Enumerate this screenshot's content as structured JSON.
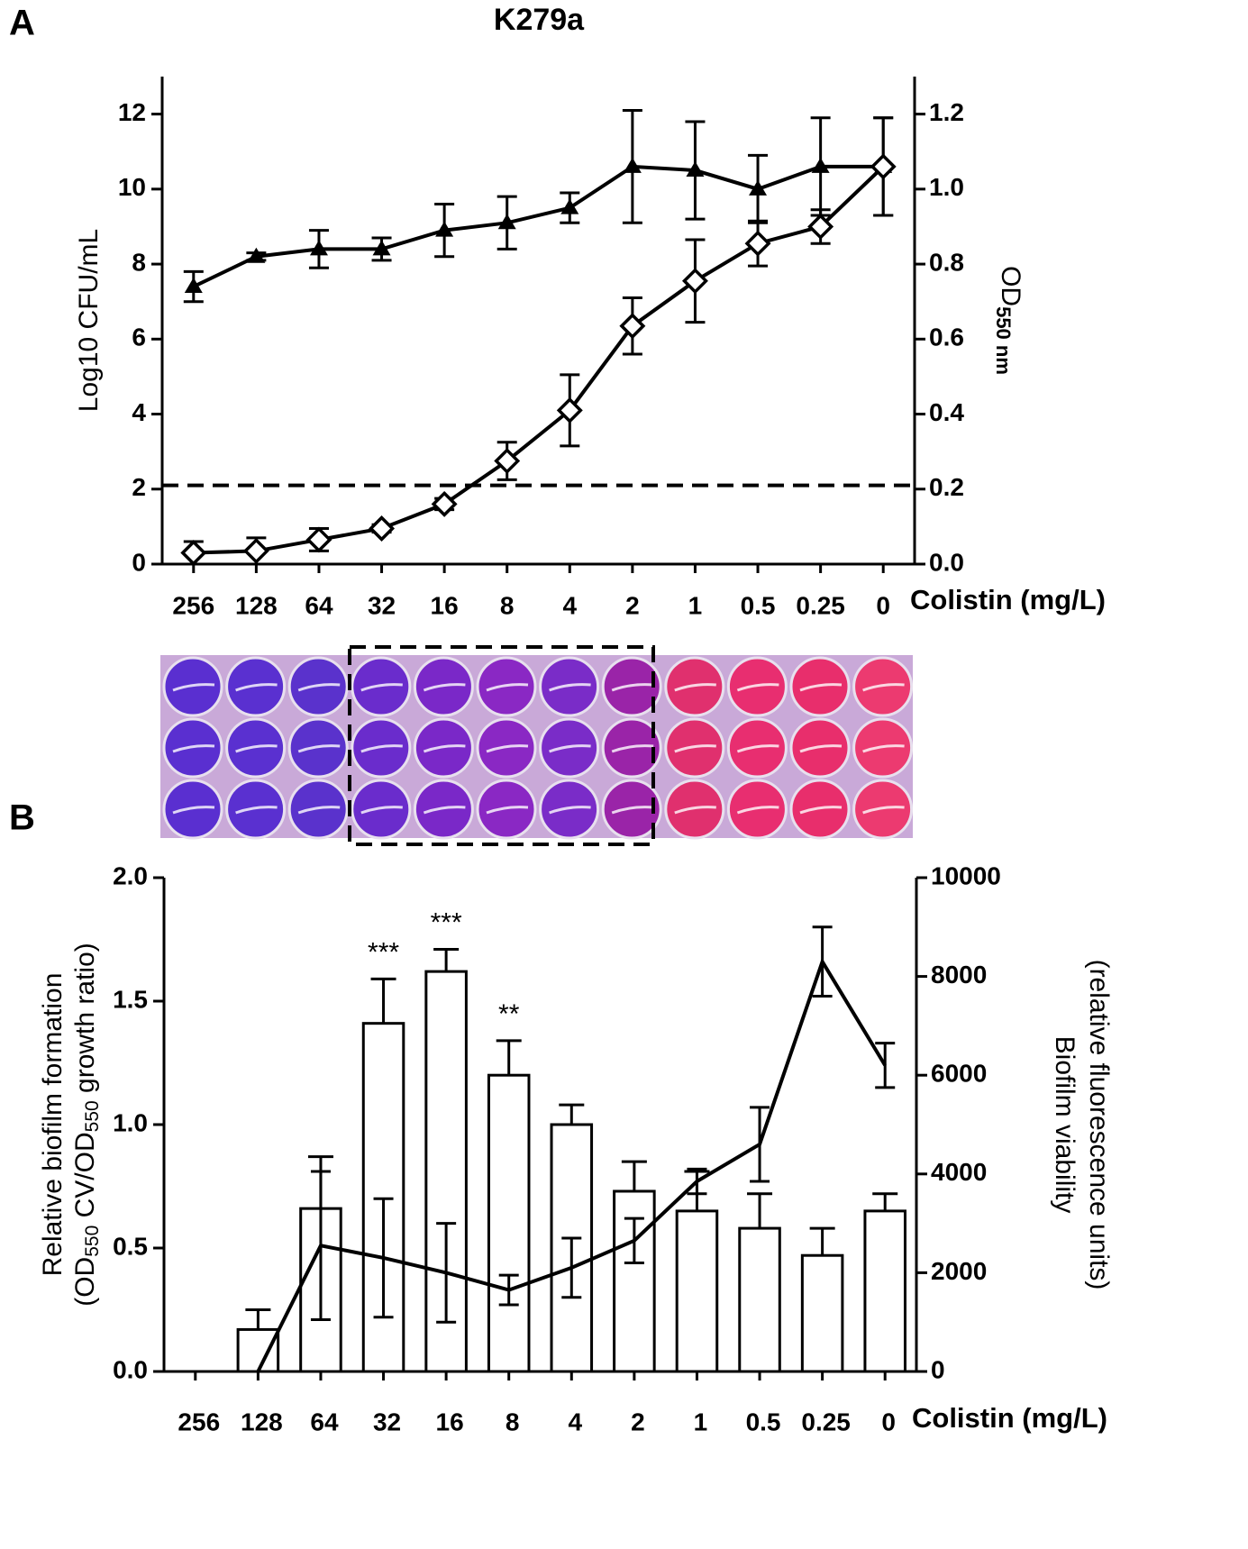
{
  "chart_data": [
    {
      "type": "line",
      "panel": "A",
      "title": "K279a",
      "categories": [
        "256",
        "128",
        "64",
        "32",
        "16",
        "8",
        "4",
        "2",
        "1",
        "0.5",
        "0.25",
        "0"
      ],
      "xlabel": "Colistin (mg/L)",
      "ylabel": "Log10 CFU/mL",
      "y2label": {
        "main": "OD",
        "sub": "550 nm"
      },
      "ylim": [
        0,
        13
      ],
      "yticks": [
        0,
        2,
        4,
        6,
        8,
        10,
        12
      ],
      "y2lim": [
        0,
        1.3
      ],
      "y2ticks": [
        {
          "value": 0,
          "label": "0.0"
        },
        0.2,
        0.4,
        0.6,
        0.8,
        {
          "value": 1,
          "label": "1.0"
        },
        1.2
      ],
      "reference_line": 2.1,
      "series": [
        {
          "marker": "triangle",
          "color": "#000000",
          "axis": "y2",
          "values": [
            0.74,
            0.82,
            0.84,
            0.84,
            0.89,
            0.91,
            0.95,
            1.06,
            1.05,
            1.0,
            1.06,
            1.06
          ],
          "errors": [
            0.04,
            0.01,
            0.05,
            0.03,
            0.07,
            0.07,
            0.04,
            0.15,
            0.13,
            0.09,
            0.13,
            0.13
          ]
        },
        {
          "marker": "diamond",
          "color": "#000000",
          "values": [
            0.3,
            0.35,
            0.65,
            0.95,
            1.6,
            2.75,
            4.1,
            6.35,
            7.55,
            8.55,
            9.0,
            10.6
          ],
          "errors": [
            0.3,
            0.35,
            0.3,
            0.1,
            0.15,
            0.5,
            0.95,
            0.75,
            1.1,
            0.6,
            0.45,
            1.3
          ]
        }
      ]
    },
    {
      "type": "bar",
      "panel": "B",
      "categories": [
        "256",
        "128",
        "64",
        "32",
        "16",
        "8",
        "4",
        "2",
        "1",
        "0.5",
        "0.25",
        "0"
      ],
      "xlabel": "Colistin (mg/L)",
      "ylabel": [
        "Relative biofilm formation",
        [
          "(OD",
          "550",
          " CV/OD",
          "550",
          " growth ratio)"
        ]
      ],
      "y2label": [
        "Biofilm viability",
        "(relative fluorescence units)"
      ],
      "ylim": [
        0,
        2
      ],
      "yticks": [
        {
          "value": 0,
          "label": "0.0"
        },
        0.5,
        {
          "value": 1,
          "label": "1.0"
        },
        1.5,
        {
          "value": 2,
          "label": "2.0"
        }
      ],
      "y2lim": [
        0,
        10000
      ],
      "y2ticks": [
        0,
        2000,
        4000,
        6000,
        8000,
        10000
      ],
      "annotations": [
        {
          "category": 3,
          "text": "***"
        },
        {
          "category": 4,
          "text": "***"
        },
        {
          "category": 5,
          "text": "**"
        }
      ],
      "series": [
        {
          "type": "bar",
          "color": "#ffffff",
          "values": [
            0,
            0.17,
            0.66,
            1.41,
            1.62,
            1.2,
            1.0,
            0.73,
            0.65,
            0.58,
            0.47,
            0.65
          ],
          "errors": [
            0,
            0.08,
            0.21,
            0.18,
            0.09,
            0.14,
            0.08,
            0.12,
            0.16,
            0.14,
            0.11,
            0.07
          ]
        },
        {
          "type": "line",
          "color": "#000000",
          "axis": "y2",
          "values": [
            null,
            0,
            2550,
            2300,
            2000,
            1650,
            2100,
            2650,
            3850,
            4600,
            8300,
            6200
          ],
          "errors": [
            null,
            0,
            1500,
            1200,
            1000,
            300,
            600,
            450,
            250,
            750,
            700,
            450
          ]
        }
      ]
    }
  ]
}
